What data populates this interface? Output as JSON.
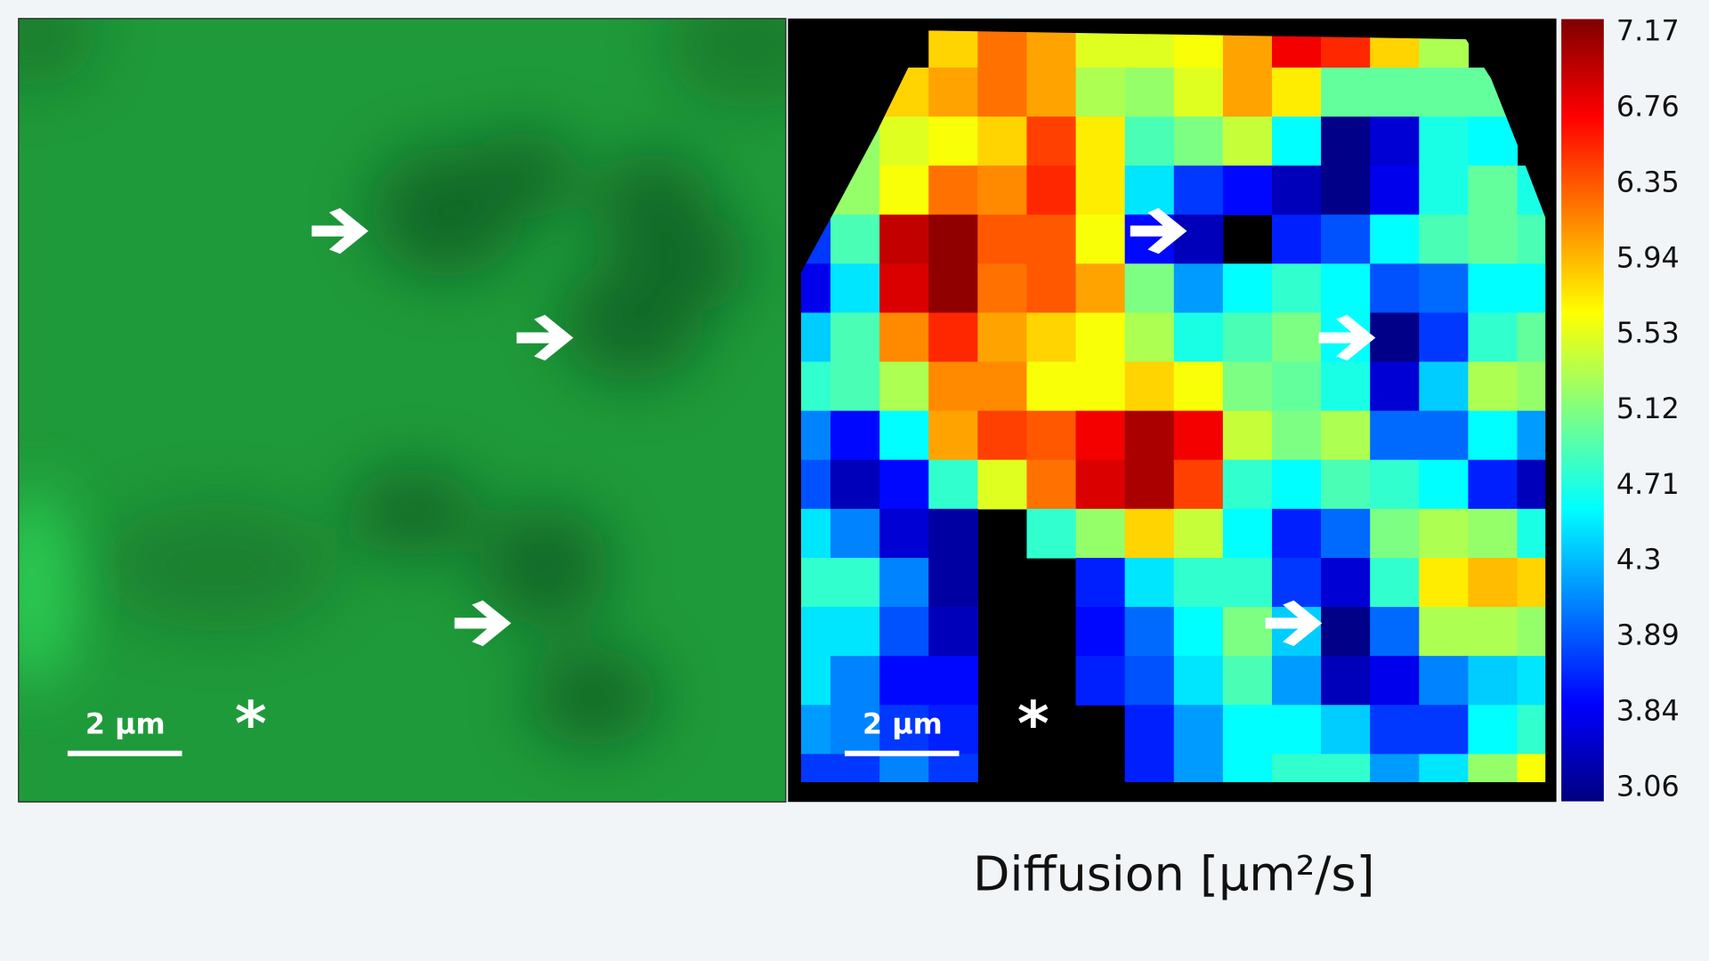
{
  "left_panel": {
    "scale_bar": "2 µm",
    "marker": "*"
  },
  "right_panel": {
    "scale_bar": "2 µm",
    "marker": "*"
  },
  "chart_data": {
    "type": "heatmap",
    "colorbar_label": "Diffusion [µm²/s]",
    "zlim": [
      3.06,
      7.17
    ],
    "colorbar_ticks": [
      7.17,
      6.76,
      6.35,
      5.94,
      5.53,
      5.12,
      4.71,
      4.3,
      3.89,
      3.84,
      3.06
    ],
    "values": [
      [
        null,
        null,
        null,
        5.8,
        6.2,
        6.0,
        5.5,
        5.5,
        5.6,
        6.0,
        6.7,
        6.5,
        5.8,
        5.3,
        null,
        null
      ],
      [
        null,
        null,
        5.8,
        6.0,
        6.2,
        6.0,
        5.3,
        5.2,
        5.5,
        6.0,
        5.7,
        5.0,
        5.0,
        5.0,
        5.0,
        null
      ],
      [
        null,
        5.2,
        5.5,
        5.6,
        5.8,
        6.4,
        5.7,
        4.9,
        5.1,
        5.4,
        4.6,
        3.1,
        3.4,
        4.7,
        4.6,
        null
      ],
      [
        null,
        5.2,
        5.6,
        6.2,
        6.1,
        6.5,
        5.7,
        4.5,
        3.8,
        3.6,
        3.3,
        3.1,
        3.5,
        4.7,
        5.0,
        4.7
      ],
      [
        3.8,
        4.9,
        6.9,
        7.1,
        6.3,
        6.3,
        5.6,
        3.6,
        3.3,
        null,
        3.7,
        3.9,
        4.6,
        4.9,
        5.0,
        4.9
      ],
      [
        3.5,
        4.5,
        6.8,
        7.1,
        6.2,
        6.3,
        6.0,
        5.1,
        4.2,
        4.6,
        4.8,
        4.6,
        3.9,
        4.0,
        4.6,
        4.6
      ],
      [
        4.4,
        4.9,
        6.1,
        6.5,
        6.0,
        5.8,
        5.6,
        5.3,
        4.7,
        4.9,
        5.1,
        4.6,
        3.1,
        3.8,
        4.8,
        5.0
      ],
      [
        4.8,
        4.9,
        5.3,
        6.1,
        6.1,
        5.6,
        5.6,
        5.8,
        5.6,
        5.1,
        5.0,
        4.7,
        3.4,
        4.4,
        5.3,
        5.2
      ],
      [
        4.1,
        3.6,
        4.6,
        6.0,
        6.4,
        6.3,
        6.7,
        7.0,
        6.7,
        5.4,
        5.1,
        5.3,
        4.0,
        4.0,
        4.6,
        4.2
      ],
      [
        3.9,
        3.3,
        3.6,
        4.8,
        5.5,
        6.2,
        6.8,
        7.0,
        6.4,
        4.8,
        4.6,
        4.9,
        4.8,
        4.6,
        3.7,
        3.3
      ],
      [
        4.5,
        4.1,
        3.4,
        3.2,
        null,
        4.8,
        5.2,
        5.8,
        5.4,
        4.6,
        3.7,
        4.0,
        5.1,
        5.3,
        5.2,
        4.7
      ],
      [
        4.8,
        4.8,
        4.1,
        3.2,
        null,
        null,
        3.7,
        4.5,
        4.8,
        4.8,
        3.8,
        3.4,
        4.8,
        5.7,
        5.9,
        5.8
      ],
      [
        4.5,
        4.5,
        3.9,
        3.3,
        null,
        null,
        3.6,
        4.0,
        4.6,
        5.1,
        4.4,
        3.1,
        4.0,
        5.3,
        5.3,
        5.2
      ],
      [
        4.5,
        4.1,
        3.6,
        3.6,
        null,
        null,
        3.7,
        3.9,
        4.5,
        4.9,
        4.2,
        3.3,
        3.5,
        4.1,
        4.4,
        4.5
      ],
      [
        4.2,
        4.1,
        3.8,
        3.7,
        null,
        null,
        null,
        3.7,
        4.2,
        4.6,
        4.6,
        4.4,
        3.8,
        3.8,
        4.6,
        4.8
      ],
      [
        3.8,
        3.8,
        4.1,
        3.8,
        null,
        null,
        null,
        3.7,
        4.2,
        4.6,
        4.8,
        4.8,
        4.2,
        4.5,
        5.2,
        5.6
      ]
    ]
  }
}
